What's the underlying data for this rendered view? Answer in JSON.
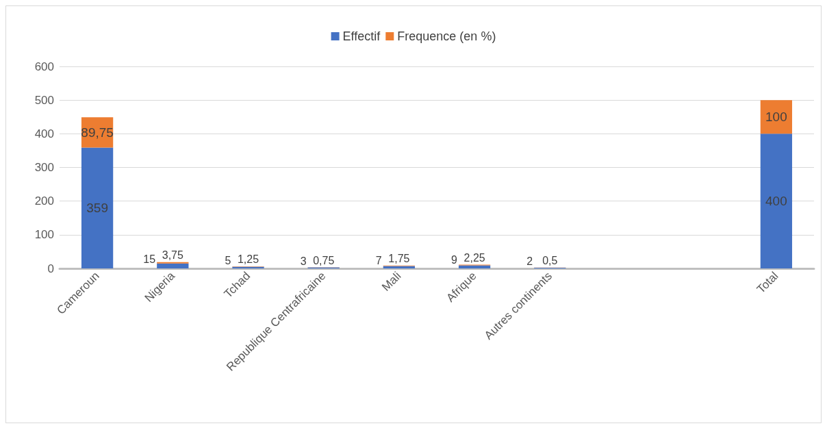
{
  "chart_data": {
    "type": "bar",
    "stacked": true,
    "categories": [
      "Cameroun",
      "Nigeria",
      "Tchad",
      "Republique Centrafricaine",
      "Mali",
      "Afrique",
      "Autres continents",
      null,
      null,
      "Total"
    ],
    "series": [
      {
        "name": "Effectif",
        "color": "#4472c4",
        "values": [
          359,
          15,
          5,
          3,
          7,
          9,
          2,
          null,
          null,
          400
        ],
        "value_labels": [
          "359",
          "15",
          "5",
          "3",
          "7",
          "9",
          "2",
          null,
          null,
          "400"
        ]
      },
      {
        "name": "Frequence (en %)",
        "color": "#ed7d31",
        "values": [
          89.75,
          3.75,
          1.25,
          0.75,
          1.75,
          2.25,
          0.5,
          null,
          null,
          100
        ],
        "value_labels": [
          "89,75",
          "3,75",
          "1,25",
          "0,75",
          "1,75",
          "2,25",
          "0,5",
          null,
          null,
          "100"
        ]
      }
    ],
    "ylim": [
      0,
      600
    ],
    "yticks": [
      0,
      100,
      200,
      300,
      400,
      500,
      600
    ],
    "grid": "y",
    "legend": "top"
  }
}
